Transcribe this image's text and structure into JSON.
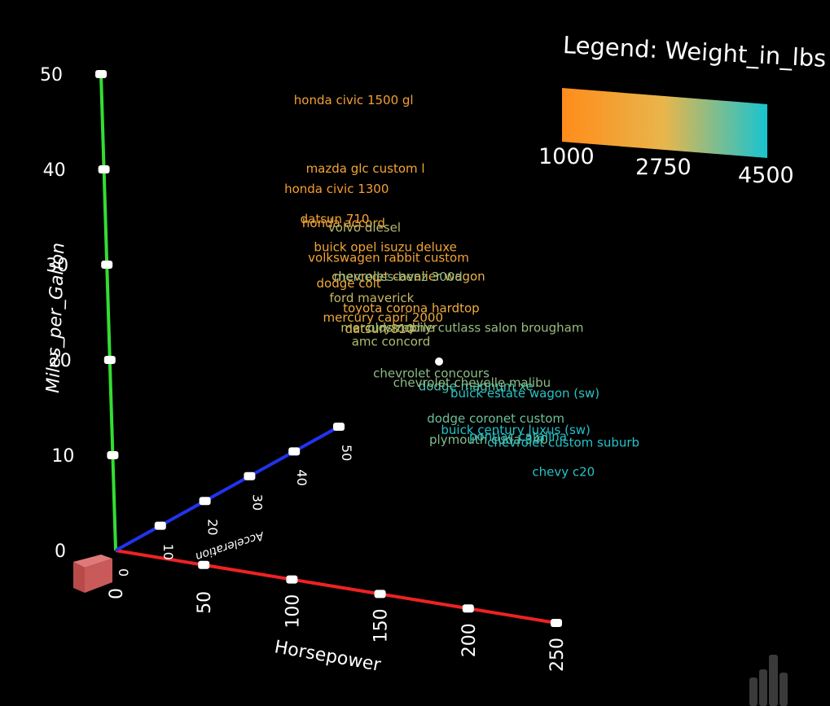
{
  "chart_data": {
    "type": "scatter",
    "dimensions": 3,
    "axes": {
      "x": {
        "label": "Horsepower",
        "ticks": [
          "0",
          "50",
          "100",
          "150",
          "200",
          "250"
        ],
        "range": [
          0,
          250
        ]
      },
      "y": {
        "label": "Miles_per_Gallon",
        "ticks": [
          "0",
          "10",
          "20",
          "30",
          "40",
          "50"
        ],
        "range": [
          0,
          50
        ]
      },
      "z": {
        "label": "Acceleration",
        "ticks": [
          "0",
          "10",
          "20",
          "30",
          "40",
          "50"
        ],
        "range": [
          0,
          50
        ]
      }
    },
    "legend": {
      "title": "Legend: Weight_in_lbs",
      "ticks": [
        "1000",
        "2750",
        "4500"
      ],
      "range": [
        1000,
        4500
      ],
      "colors": [
        "#ff8c1a",
        "#e8b64c",
        "#17c4d0"
      ]
    },
    "points": [
      {
        "name": "honda civic 1500 gl",
        "hp": 67,
        "mpg": 44.6,
        "acc": 16.4,
        "weight": 1850
      },
      {
        "name": "mazda glc custom l",
        "hp": 68,
        "mpg": 37.0,
        "acc": 18.2,
        "weight": 2025
      },
      {
        "name": "honda civic 1300",
        "hp": 60,
        "mpg": 35.1,
        "acc": 16.4,
        "weight": 1760
      },
      {
        "name": "datsun 710",
        "hp": 67,
        "mpg": 32.0,
        "acc": 17.0,
        "weight": 1950
      },
      {
        "name": "honda accord",
        "hp": 68,
        "mpg": 31.6,
        "acc": 17.0,
        "weight": 2135
      },
      {
        "name": "volvo diesel",
        "hp": 76,
        "mpg": 30.7,
        "acc": 19.6,
        "weight": 3160
      },
      {
        "name": "buick opel isuzu deluxe",
        "hp": 80,
        "mpg": 30.0,
        "acc": 14.8,
        "weight": 2065
      },
      {
        "name": "volkswagen rabbit custom",
        "hp": 78,
        "mpg": 29.0,
        "acc": 14.2,
        "weight": 1940
      },
      {
        "name": "chevrolet cavalier wagon",
        "hp": 88,
        "mpg": 27.0,
        "acc": 15.4,
        "weight": 2640
      },
      {
        "name": "mercedes-benz 300d",
        "hp": 77,
        "mpg": 25.4,
        "acc": 20.1,
        "weight": 3530
      },
      {
        "name": "dodge colt",
        "hp": 79,
        "mpg": 26.0,
        "acc": 15.5,
        "weight": 2255
      },
      {
        "name": "ford maverick",
        "hp": 81,
        "mpg": 24.0,
        "acc": 17.5,
        "weight": 3012
      },
      {
        "name": "toyota corona hardtop",
        "hp": 95,
        "mpg": 24.0,
        "acc": 15.0,
        "weight": 2278
      },
      {
        "name": "mercury capri 2000",
        "hp": 86,
        "mpg": 23.0,
        "acc": 14.0,
        "weight": 2220
      },
      {
        "name": "datsun 810",
        "hp": 97,
        "mpg": 22.0,
        "acc": 14.5,
        "weight": 2815
      },
      {
        "name": "mercury zephyr",
        "hp": 85,
        "mpg": 20.8,
        "acc": 18.2,
        "weight": 3070
      },
      {
        "name": "oldsmobile cutlass salon brougham",
        "hp": 90,
        "mpg": 19.9,
        "acc": 22.2,
        "weight": 3420
      },
      {
        "name": "amc concord",
        "hp": 90,
        "mpg": 19.4,
        "acc": 18.6,
        "weight": 3210
      },
      {
        "name": "chevrolet concours",
        "hp": 110,
        "mpg": 17.5,
        "acc": 15.4,
        "weight": 3520
      },
      {
        "name": "dodge magnum xe",
        "hp": 140,
        "mpg": 17.5,
        "acc": 13.7,
        "weight": 4080
      },
      {
        "name": "buick estate wagon (sw)",
        "hp": 155,
        "mpg": 16.9,
        "acc": 14.9,
        "weight": 4360
      },
      {
        "name": "dodge coronet custom",
        "hp": 150,
        "mpg": 15.0,
        "acc": 11.5,
        "weight": 3777
      },
      {
        "name": "chevrolet chevelle malibu",
        "hp": 130,
        "mpg": 18.0,
        "acc": 12.0,
        "weight": 3504
      },
      {
        "name": "buick century luxus (sw)",
        "hp": 150,
        "mpg": 13.0,
        "acc": 14.5,
        "weight": 4422
      },
      {
        "name": "plymouth cuda 340",
        "hp": 160,
        "mpg": 14.0,
        "acc": 8.0,
        "weight": 3609
      },
      {
        "name": "chevrolet custom suburb",
        "hp": 180,
        "mpg": 13.0,
        "acc": 13.0,
        "weight": 4380
      },
      {
        "name": "pontiac catalina",
        "hp": 175,
        "mpg": 14.0,
        "acc": 11.0,
        "weight": 4385
      },
      {
        "name": "chevy c20",
        "hp": 200,
        "mpg": 10.0,
        "acc": 15.0,
        "weight": 4376
      }
    ]
  }
}
